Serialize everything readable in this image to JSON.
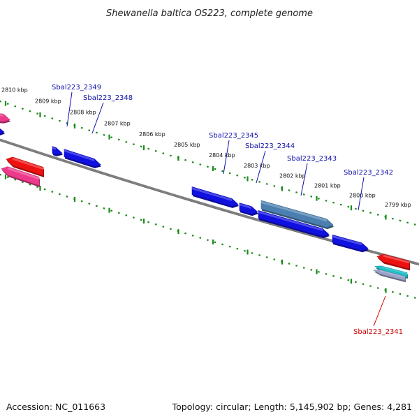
{
  "header": {
    "title": "Shewanella baltica OS223, complete genome"
  },
  "footer": {
    "accession": "Accession: NC_011663",
    "summary": "Topology: circular; Length: 5,145,902 bp; Genes: 4,281"
  },
  "colors": {
    "backbone": "#7f7f7f",
    "tick": "#1a8a1a",
    "label_blue": "#1010aa",
    "label_red": "#cc0000",
    "cds_blue": "#1010e0",
    "cds_steelblue": "#4a7fb0",
    "cds_red": "#ee1111",
    "cds_pink": "#ee3a8c",
    "cds_cyan": "#20c0c8"
  },
  "ticks": [
    {
      "label": "2810 kbp"
    },
    {
      "label": "2809 kbp"
    },
    {
      "label": "2808 kbp"
    },
    {
      "label": "2807 kbp"
    },
    {
      "label": "2806 kbp"
    },
    {
      "label": "2805 kbp"
    },
    {
      "label": "2804 kbp"
    },
    {
      "label": "2803 kbp"
    },
    {
      "label": "2802 kbp"
    },
    {
      "label": "2801 kbp"
    },
    {
      "label": "2800 kbp"
    },
    {
      "label": "2799 kbp"
    }
  ],
  "gene_labels": [
    {
      "name": "Sbal223_2349",
      "color": "blue"
    },
    {
      "name": "Sbal223_2348",
      "color": "blue"
    },
    {
      "name": "Sbal223_2345",
      "color": "blue"
    },
    {
      "name": "Sbal223_2344",
      "color": "blue"
    },
    {
      "name": "Sbal223_2343",
      "color": "blue"
    },
    {
      "name": "Sbal223_2342",
      "color": "blue"
    },
    {
      "name": "Sbal223_2341",
      "color": "red"
    }
  ]
}
